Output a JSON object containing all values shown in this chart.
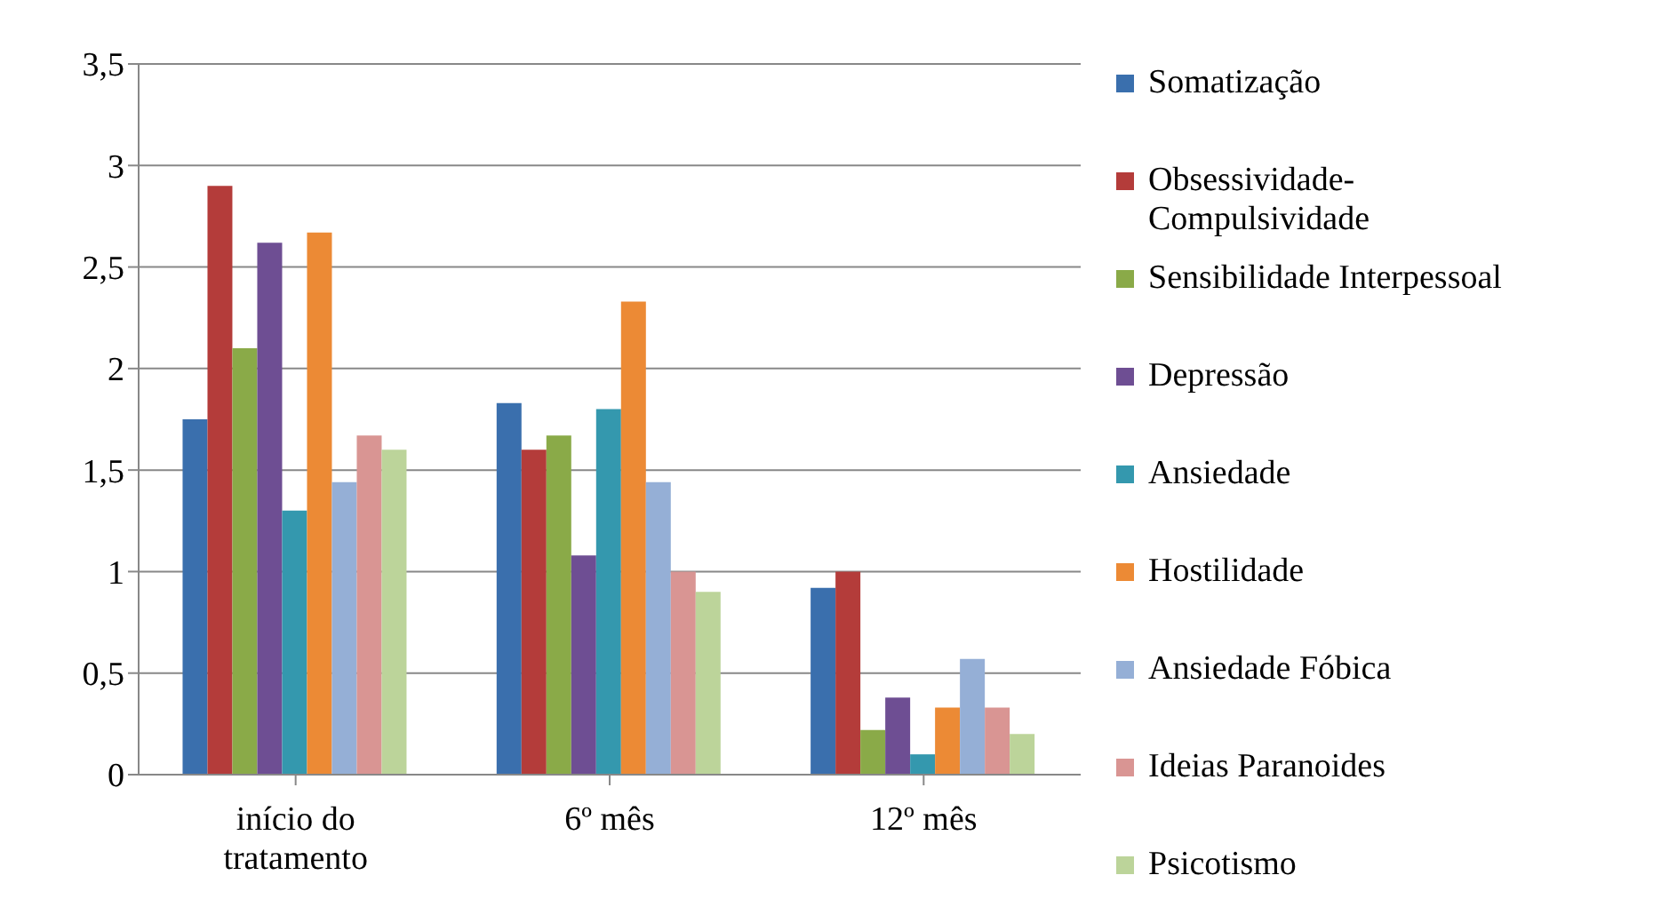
{
  "chart_data": {
    "type": "bar",
    "categories": [
      "início do tratamento",
      "6º mês",
      "12º mês"
    ],
    "series": [
      {
        "name": "Somatização",
        "color": "#3a6fad",
        "values": [
          1.75,
          1.83,
          0.92
        ]
      },
      {
        "name": "Obsessividade-Compulsividade",
        "color": "#b43c3a",
        "values": [
          2.9,
          1.6,
          1.0
        ]
      },
      {
        "name": "Sensibilidade Interpessoal",
        "color": "#8aaa48",
        "values": [
          2.1,
          1.67,
          0.22
        ]
      },
      {
        "name": "Depressão",
        "color": "#6e4e93",
        "values": [
          2.62,
          1.08,
          0.38
        ]
      },
      {
        "name": "Ansiedade",
        "color": "#3498ae",
        "values": [
          1.3,
          1.8,
          0.1
        ]
      },
      {
        "name": "Hostilidade",
        "color": "#ec8a35",
        "values": [
          2.67,
          2.33,
          0.33
        ]
      },
      {
        "name": "Ansiedade Fóbica",
        "color": "#95afd6",
        "values": [
          1.44,
          1.44,
          0.57
        ]
      },
      {
        "name": "Ideias Paranoides",
        "color": "#d99593",
        "values": [
          1.67,
          1.0,
          0.33
        ]
      },
      {
        "name": "Psicotismo",
        "color": "#bcd49a",
        "values": [
          1.6,
          0.9,
          0.2
        ]
      }
    ],
    "ylim": [
      0,
      3.5
    ],
    "yticks": [
      {
        "value": 0,
        "label": "0"
      },
      {
        "value": 0.5,
        "label": "0,5"
      },
      {
        "value": 1,
        "label": "1"
      },
      {
        "value": 1.5,
        "label": "1,5"
      },
      {
        "value": 2,
        "label": "2"
      },
      {
        "value": 2.5,
        "label": "2,5"
      },
      {
        "value": 3,
        "label": "3"
      },
      {
        "value": 3.5,
        "label": "3,5"
      }
    ],
    "grid": "y",
    "legend": "right"
  }
}
